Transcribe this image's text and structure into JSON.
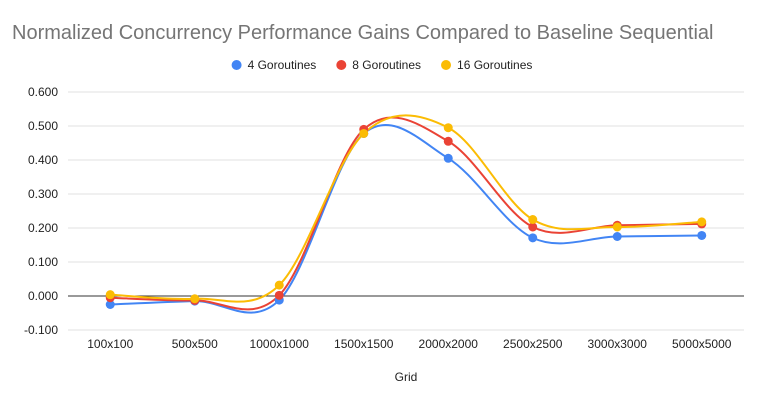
{
  "chart_data": {
    "type": "line",
    "title": "Normalized Concurrency Performance Gains Compared to Baseline Sequential",
    "xlabel": "Grid",
    "ylabel": "",
    "categories": [
      "100x100",
      "500x500",
      "1000x1000",
      "1500x1500",
      "2000x2000",
      "2500x2500",
      "3000x3000",
      "5000x5000"
    ],
    "ylim": [
      -0.1,
      0.6
    ],
    "yticks": [
      -0.1,
      0.0,
      0.1,
      0.2,
      0.3,
      0.4,
      0.5,
      0.6
    ],
    "yticks_labels": [
      "-0.100",
      "0.000",
      "0.100",
      "0.200",
      "0.300",
      "0.400",
      "0.500",
      "0.600"
    ],
    "grid": true,
    "smooth": true,
    "legend_position": "top",
    "series": [
      {
        "name": "4 Goroutines",
        "color": "#4285f4",
        "values": [
          -0.025,
          -0.015,
          -0.012,
          0.478,
          0.405,
          0.171,
          0.175,
          0.178
        ]
      },
      {
        "name": "8 Goroutines",
        "color": "#ea4335",
        "values": [
          -0.005,
          -0.013,
          0.002,
          0.49,
          0.455,
          0.203,
          0.208,
          0.212
        ]
      },
      {
        "name": "16 Goroutines",
        "color": "#fbbc04",
        "values": [
          0.004,
          -0.008,
          0.032,
          0.478,
          0.495,
          0.225,
          0.203,
          0.218
        ]
      }
    ]
  }
}
